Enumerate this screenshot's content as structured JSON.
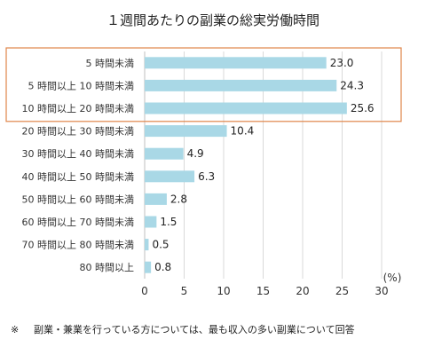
{
  "chart_data": {
    "type": "bar",
    "orientation": "horizontal",
    "title": "１週間あたりの副業の総実労働時間",
    "categories": [
      "5 時間未満",
      "5 時間以上 10 時間未満",
      "10 時間以上 20 時間未満",
      "20 時間以上 30 時間未満",
      "30 時間以上 40 時間未満",
      "40 時間以上 50 時間未満",
      "50 時間以上 60 時間未満",
      "60 時間以上 70 時間未満",
      "70 時間以上 80 時間未満",
      "80 時間以上"
    ],
    "values": [
      23.0,
      24.3,
      25.6,
      10.4,
      4.9,
      6.3,
      2.8,
      1.5,
      0.5,
      0.8
    ],
    "value_labels": [
      "23.0",
      "24.3",
      "25.6",
      "10.4",
      "4.9",
      "6.3",
      "2.8",
      "1.5",
      "0.5",
      "0.8"
    ],
    "xlabel": "(%)",
    "xlim": [
      0,
      30
    ],
    "xticks": [
      "0",
      "5",
      "10",
      "15",
      "20",
      "25",
      "30"
    ],
    "grid": true,
    "highlight_categories": [
      0,
      1,
      2
    ],
    "colors": {
      "bar": "#a9d8e6",
      "highlight_box": "#e0854a",
      "grid": "#d9d9d9",
      "axis": "#bfbfbf"
    }
  },
  "footnote": {
    "mark": "※",
    "text": "副業・兼業を行っている方については、最も収入の多い副業について回答"
  }
}
